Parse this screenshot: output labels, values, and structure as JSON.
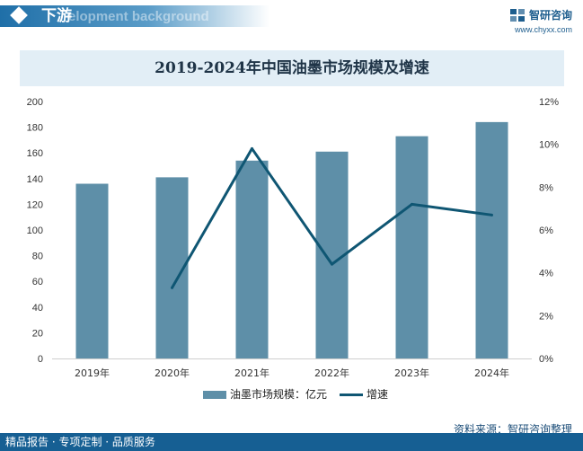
{
  "header": {
    "section_title": "下游",
    "section_subtitle": "elopment background",
    "brand_name": "智研咨询",
    "brand_url": "www.chyxx.com"
  },
  "chart_data": {
    "type": "bar+line",
    "title": "2019-2024年中国油墨市场规模及增速",
    "categories": [
      "2019年",
      "2020年",
      "2021年",
      "2022年",
      "2023年",
      "2024年"
    ],
    "series": [
      {
        "name": "油墨市场规模：亿元",
        "type": "bar",
        "axis": "left",
        "values": [
          136,
          141,
          154,
          161,
          173,
          184
        ]
      },
      {
        "name": "增速",
        "type": "line",
        "axis": "right",
        "values": [
          null,
          3.3,
          9.8,
          4.4,
          7.2,
          6.7
        ]
      }
    ],
    "y_left": {
      "min": 0,
      "max": 200,
      "step": 20,
      "ticks": [
        "0",
        "20",
        "40",
        "60",
        "80",
        "100",
        "120",
        "140",
        "160",
        "180",
        "200"
      ]
    },
    "y_right": {
      "min": 0,
      "max": 12,
      "step": 2,
      "ticks": [
        "0%",
        "2%",
        "4%",
        "6%",
        "8%",
        "10%",
        "12%"
      ]
    },
    "colors": {
      "bar": "#5e8fa8",
      "line": "#0f5673"
    }
  },
  "source": "资料来源：智研咨询整理",
  "footer": "精品报告 · 专项定制 · 品质服务"
}
